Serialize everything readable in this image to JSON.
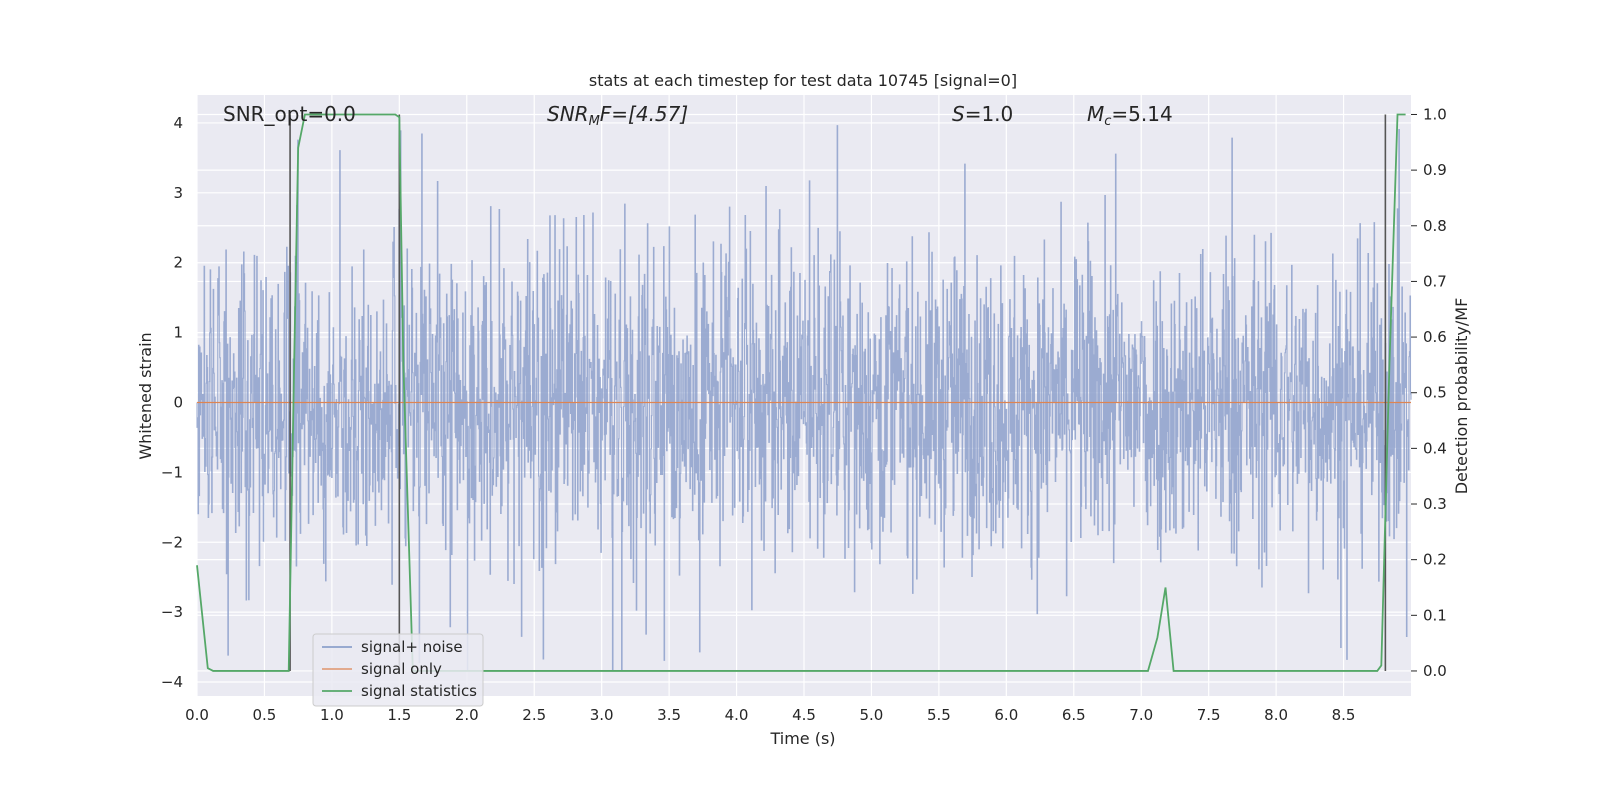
{
  "chart_data": {
    "type": "line",
    "title": "stats at each timestep for test data 10745 [signal=0]",
    "xlabel": "Time (s)",
    "ylabel": "Whitened strain",
    "y2label": "Detection probability/MF",
    "xlim": [
      0.0,
      9.0
    ],
    "ylim": [
      -4.2,
      4.4
    ],
    "y2lim": [
      -0.045,
      1.035
    ],
    "x_ticks": [
      0.0,
      0.5,
      1.0,
      1.5,
      2.0,
      2.5,
      3.0,
      3.5,
      4.0,
      4.5,
      5.0,
      5.5,
      6.0,
      6.5,
      7.0,
      7.5,
      8.0,
      8.5
    ],
    "x_tick_labels": [
      "0.0",
      "0.5",
      "1.0",
      "1.5",
      "2.0",
      "2.5",
      "3.0",
      "3.5",
      "4.0",
      "4.5",
      "5.0",
      "5.5",
      "6.0",
      "6.5",
      "7.0",
      "7.5",
      "8.0",
      "8.5"
    ],
    "y_ticks": [
      4,
      3,
      2,
      1,
      0,
      -1,
      -2,
      -3,
      -4
    ],
    "y_tick_labels": [
      "4",
      "3",
      "2",
      "1",
      "0",
      "−1",
      "−2",
      "−3",
      "−4"
    ],
    "y2_ticks": [
      1.0,
      0.9,
      0.8,
      0.7,
      0.6,
      0.5,
      0.4,
      0.3,
      0.2,
      0.1,
      0.0
    ],
    "y2_tick_labels": [
      "1.0",
      "0.9",
      "0.8",
      "0.7",
      "0.6",
      "0.5",
      "0.4",
      "0.3",
      "0.2",
      "0.1",
      "0.0"
    ],
    "grid": true,
    "legend_placement": "lower-left",
    "annotations": {
      "snr_opt": "SNR_opt=0.0",
      "snr_mf_main": "SNR",
      "snr_mf_sub": "M",
      "snr_mf_rest": "F=[4.57]",
      "s_main": "S",
      "s_rest": "=1.0",
      "mc_main": "M",
      "mc_sub": "c",
      "mc_rest": "=5.14"
    },
    "series": [
      {
        "name": "signal+ noise",
        "color": "#8da0cb",
        "kind": "noise",
        "amplitude_envelope": [
          -3.85,
          4.0
        ],
        "x_range": [
          0.0,
          9.0
        ]
      },
      {
        "name": "signal only",
        "color": "#dd8452",
        "kind": "flat",
        "value": 0.0
      },
      {
        "name": "signal statistics",
        "color": "#55a868",
        "axis": "right",
        "x": [
          0.0,
          0.08,
          0.12,
          0.68,
          0.72,
          0.75,
          0.8,
          1.47,
          1.5,
          1.53,
          1.6,
          7.05,
          7.12,
          7.18,
          7.24,
          8.75,
          8.78,
          8.84,
          8.9,
          8.96
        ],
        "y": [
          0.19,
          0.005,
          0.0,
          0.0,
          0.55,
          0.94,
          1.0,
          1.0,
          0.995,
          0.55,
          0.0,
          0.0,
          0.06,
          0.15,
          0.0,
          0.0,
          0.01,
          0.55,
          1.0,
          1.0
        ]
      }
    ],
    "vertical_markers": {
      "color": "#555555",
      "lines": [
        {
          "x": 0.69,
          "y2_from": 0.0,
          "y2_to": 1.0
        },
        {
          "x": 1.5,
          "y2_from": 0.0,
          "y2_to": 1.0
        },
        {
          "x": 8.81,
          "y2_from": 0.0,
          "y2_to": 1.0
        }
      ]
    },
    "colors": {
      "plot_background": "#eaeaf2",
      "grid": "#ffffff"
    }
  }
}
